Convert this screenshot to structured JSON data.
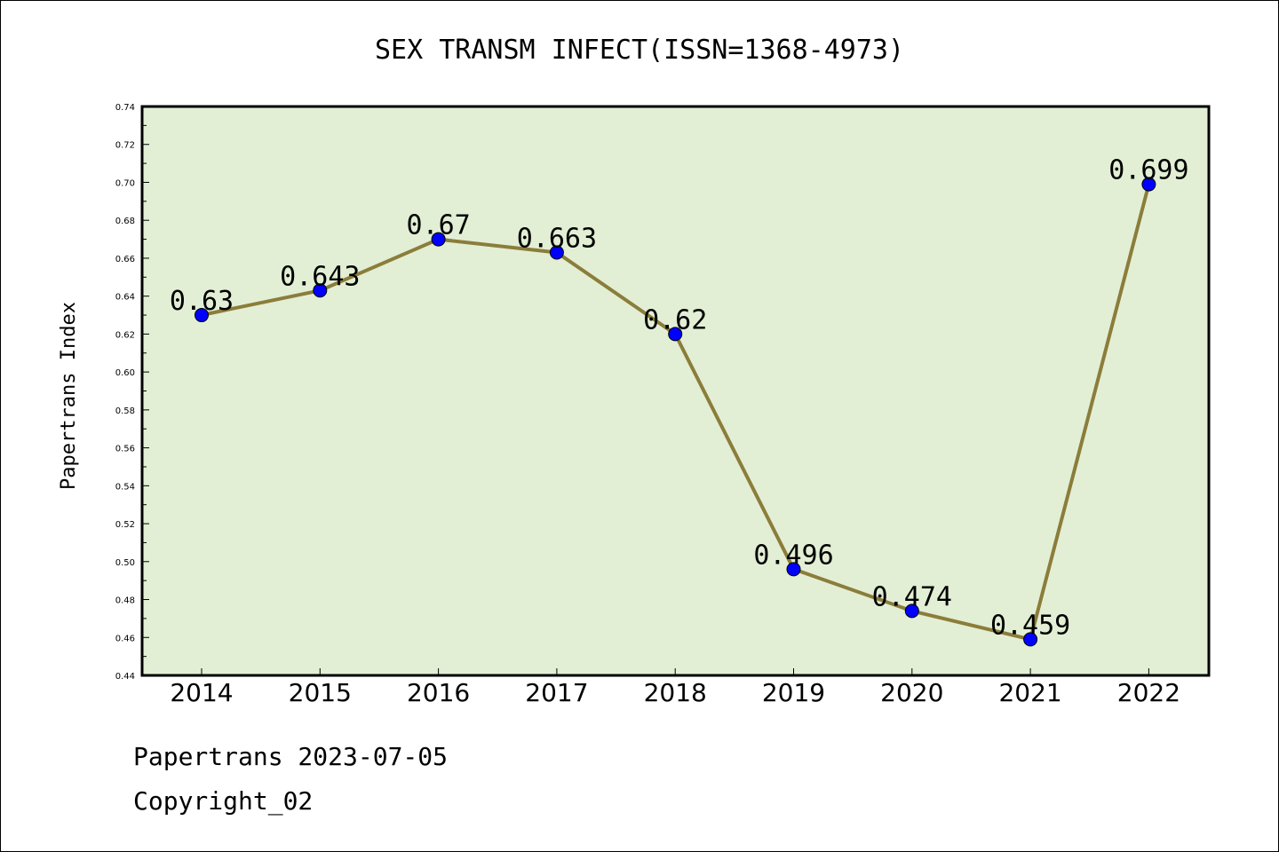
{
  "chart_data": {
    "type": "line",
    "title": "SEX TRANSM INFECT(ISSN=1368-4973)",
    "xlabel": "",
    "ylabel": "Papertrans Index",
    "categories": [
      "2014",
      "2015",
      "2016",
      "2017",
      "2018",
      "2019",
      "2020",
      "2021",
      "2022"
    ],
    "series": [
      {
        "values": [
          0.63,
          0.643,
          0.67,
          0.663,
          0.62,
          0.496,
          0.474,
          0.459,
          0.699
        ]
      }
    ],
    "data_labels": [
      "0.63",
      "0.643",
      "0.67",
      "0.663",
      "0.62",
      "0.496",
      "0.474",
      "0.459",
      "0.699"
    ],
    "ylim": [
      0.44,
      0.74
    ],
    "yticks": [
      "0.44",
      "0.46",
      "0.48",
      "0.50",
      "0.52",
      "0.54",
      "0.56",
      "0.58",
      "0.60",
      "0.62",
      "0.64",
      "0.66",
      "0.68",
      "0.70",
      "0.72",
      "0.74"
    ],
    "grid": false,
    "legend": "none",
    "colors": {
      "plot_background": "#e2efd5",
      "line": "#8b7d3a",
      "marker": "#0000ff"
    }
  },
  "footer": {
    "line1": "Papertrans 2023-07-05",
    "line2": "Copyright_02"
  }
}
